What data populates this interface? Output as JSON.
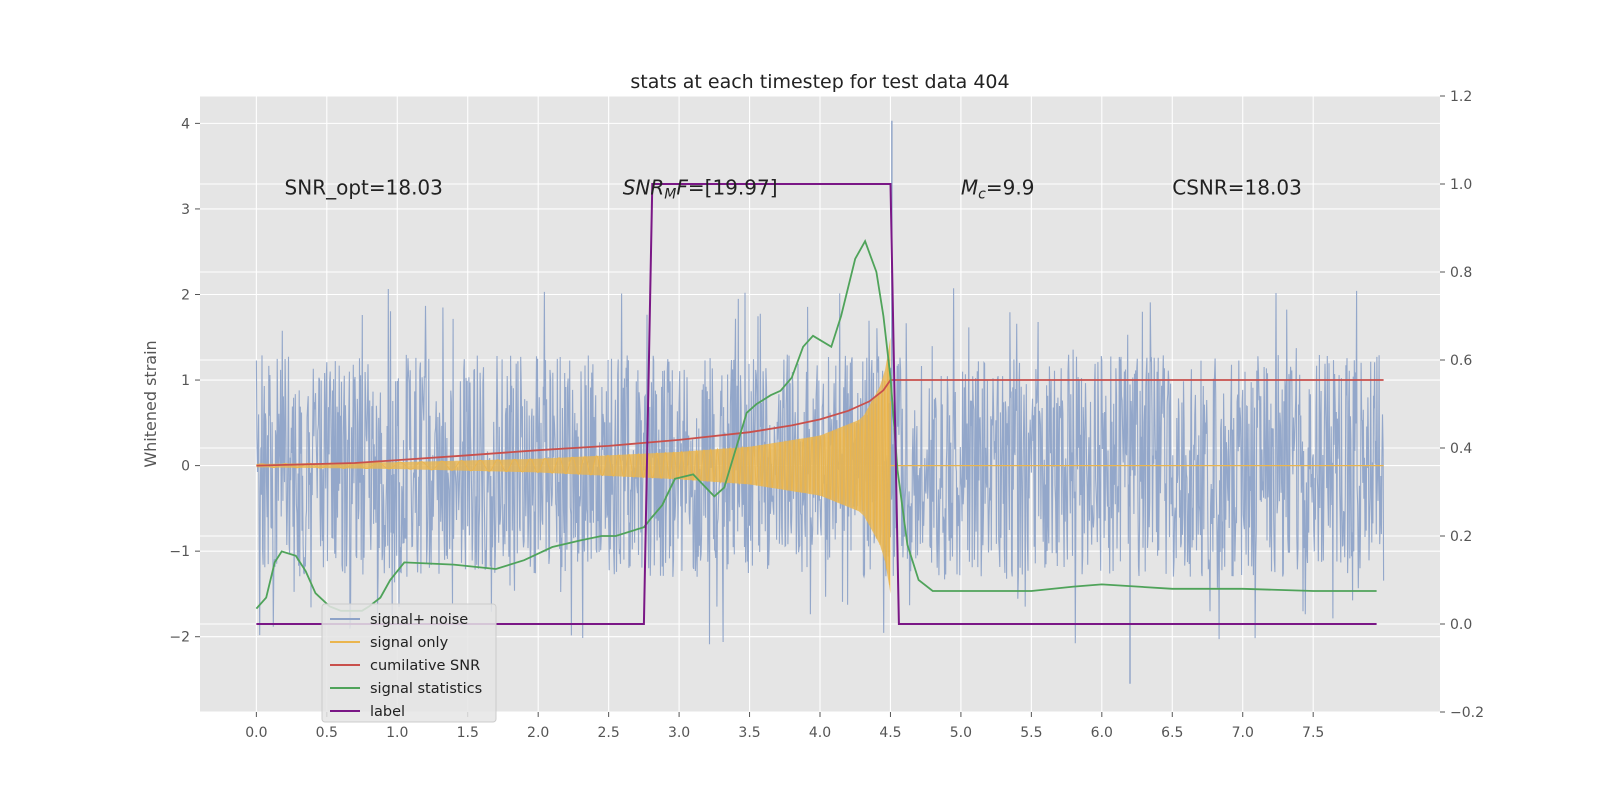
{
  "chart_data": {
    "type": "line",
    "title": "stats at each timestep for test data 404",
    "ylabel": "Whitened strain",
    "xlabel": "",
    "xlim": [
      -0.4,
      8.4
    ],
    "ylim": [
      -2.88,
      4.32
    ],
    "y2lim": [
      -0.2,
      1.2
    ],
    "x_ticks": [
      "0.0",
      "0.5",
      "1.0",
      "1.5",
      "2.0",
      "2.5",
      "3.0",
      "3.5",
      "4.0",
      "4.5",
      "5.0",
      "5.5",
      "6.0",
      "6.5",
      "7.0",
      "7.5"
    ],
    "y_ticks": [
      "−2",
      "−1",
      "0",
      "1",
      "2",
      "3",
      "4"
    ],
    "y2_ticks": [
      "−0.2",
      "0.0",
      "0.2",
      "0.4",
      "0.6",
      "0.8",
      "1.0",
      "1.2"
    ],
    "grid": true,
    "legend_position": "lower-left",
    "colors": {
      "plot_bg": "#e5e5e5",
      "grid": "#ffffff",
      "noise": "#8ea3c8",
      "signal": "#eab54e",
      "cumulative": "#c9504c",
      "statistics": "#4fa35a",
      "label": "#7a1786"
    },
    "annotations": [
      {
        "x": 0.2,
        "y": 3.25,
        "text": "SNR_opt=18.03",
        "italic": false
      },
      {
        "x": 2.6,
        "y": 3.25,
        "text": "SNR_MF=[19.97]",
        "italic": true
      },
      {
        "x": 5.0,
        "y": 3.25,
        "text": "M_c=9.9",
        "italic": true
      },
      {
        "x": 6.5,
        "y": 3.25,
        "text": "CSNR=18.03",
        "italic": false
      }
    ],
    "series": [
      {
        "name": "signal+ noise",
        "axis": "left",
        "type": "noise",
        "x_range": [
          0.0,
          8.0
        ],
        "typical_band": [
          -1.3,
          1.3
        ],
        "max": 4.03,
        "min": -2.55
      },
      {
        "name": "signal only",
        "axis": "left",
        "type": "chirp",
        "x_range": [
          0.0,
          4.5
        ],
        "envelope": {
          "x": [
            0.0,
            1.0,
            2.0,
            2.5,
            3.0,
            3.5,
            4.0,
            4.3,
            4.45,
            4.5
          ],
          "y": [
            0.02,
            0.04,
            0.08,
            0.12,
            0.16,
            0.22,
            0.35,
            0.55,
            1.0,
            1.5
          ]
        }
      },
      {
        "name": "cumilative SNR",
        "axis": "left",
        "x": [
          0.0,
          0.7,
          1.5,
          2.0,
          2.5,
          3.0,
          3.5,
          3.8,
          4.0,
          4.2,
          4.35,
          4.45,
          4.5,
          4.55,
          5.0,
          6.0,
          7.0,
          8.0
        ],
        "values": [
          0.0,
          0.03,
          0.12,
          0.18,
          0.23,
          0.3,
          0.39,
          0.47,
          0.54,
          0.64,
          0.75,
          0.88,
          1.0,
          1.0,
          1.0,
          1.0,
          1.0,
          1.0
        ]
      },
      {
        "name": "signal statistics",
        "axis": "right",
        "x": [
          0.0,
          0.07,
          0.13,
          0.18,
          0.28,
          0.35,
          0.42,
          0.52,
          0.6,
          0.75,
          0.8,
          0.88,
          0.95,
          1.05,
          1.4,
          1.7,
          1.9,
          2.1,
          2.3,
          2.45,
          2.55,
          2.75,
          2.8,
          2.88,
          2.97,
          3.1,
          3.25,
          3.32,
          3.48,
          3.55,
          3.65,
          3.72,
          3.8,
          3.88,
          3.95,
          4.08,
          4.15,
          4.25,
          4.32,
          4.4,
          4.45,
          4.5,
          4.55,
          4.62,
          4.7,
          4.8,
          5.0,
          5.5,
          5.8,
          6.0,
          6.5,
          7.0,
          7.5,
          7.95
        ],
        "values": [
          0.035,
          0.06,
          0.14,
          0.165,
          0.155,
          0.12,
          0.07,
          0.04,
          0.03,
          0.03,
          0.04,
          0.06,
          0.1,
          0.14,
          0.135,
          0.125,
          0.145,
          0.175,
          0.19,
          0.2,
          0.2,
          0.22,
          0.24,
          0.27,
          0.33,
          0.34,
          0.29,
          0.31,
          0.48,
          0.5,
          0.52,
          0.53,
          0.56,
          0.63,
          0.655,
          0.63,
          0.7,
          0.83,
          0.87,
          0.8,
          0.7,
          0.56,
          0.35,
          0.18,
          0.1,
          0.075,
          0.075,
          0.075,
          0.085,
          0.09,
          0.08,
          0.08,
          0.075,
          0.075
        ]
      },
      {
        "name": "label",
        "axis": "right",
        "x": [
          0.0,
          2.75,
          2.81,
          4.5,
          4.56,
          7.95
        ],
        "values": [
          0.0,
          0.0,
          1.0,
          1.0,
          0.0,
          0.0
        ]
      }
    ]
  }
}
